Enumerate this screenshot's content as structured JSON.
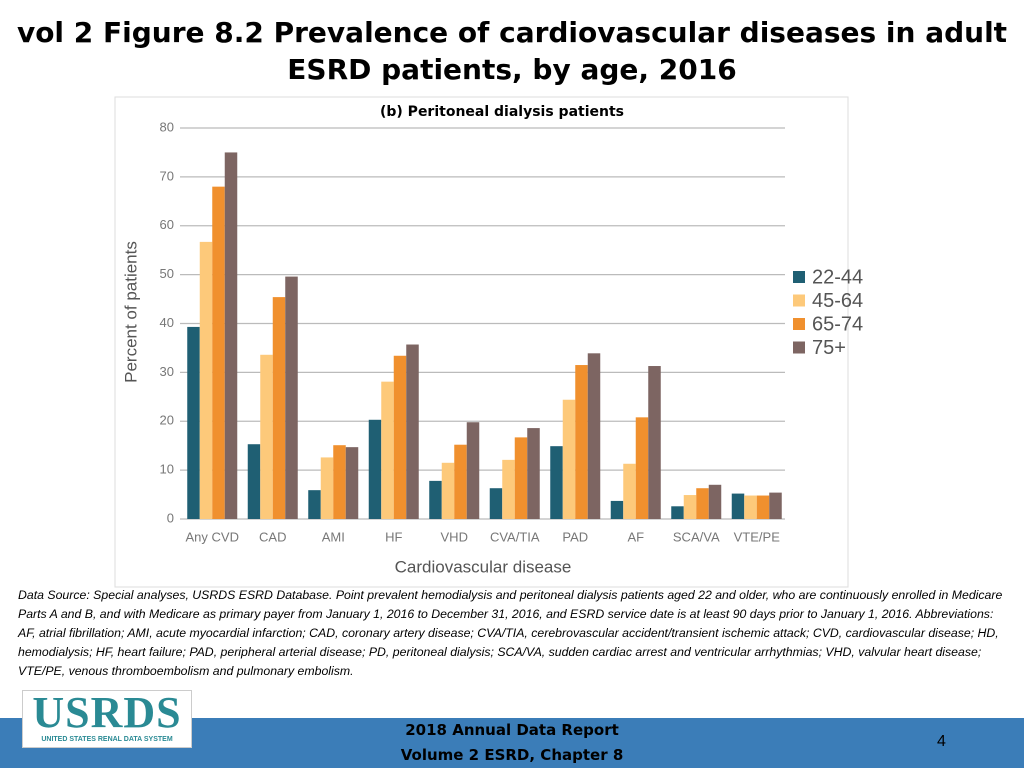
{
  "slide_title": "vol 2 Figure 8.2 Prevalence of cardiovascular diseases in adult ESRD patients, by age, 2016",
  "chart_data": {
    "type": "bar",
    "subtitle": "(b) Peritoneal dialysis patients",
    "x_label": "Cardiovascular disease",
    "y_label": "Percent of patients",
    "categories": [
      "Any CVD",
      "CAD",
      "AMI",
      "HF",
      "VHD",
      "CVA/TIA",
      "PAD",
      "AF",
      "SCA/VA",
      "VTE/PE"
    ],
    "series": [
      {
        "name": "22-44",
        "color": "#1f5f73",
        "values": [
          39.3,
          15.3,
          5.9,
          20.3,
          7.8,
          6.3,
          14.9,
          3.7,
          2.6,
          5.2
        ]
      },
      {
        "name": "45-64",
        "color": "#fdc97a",
        "values": [
          56.7,
          33.6,
          12.6,
          28.1,
          11.5,
          12.1,
          24.4,
          11.3,
          4.9,
          4.8
        ]
      },
      {
        "name": "65-74",
        "color": "#f0902e",
        "values": [
          68,
          45.4,
          15.1,
          33.4,
          15.2,
          16.7,
          31.5,
          20.8,
          6.3,
          4.8
        ]
      },
      {
        "name": "75+",
        "color": "#7d6562",
        "values": [
          75,
          49.6,
          14.7,
          35.7,
          19.8,
          18.6,
          33.9,
          31.3,
          7.0,
          5.4
        ]
      }
    ],
    "ylim": [
      0,
      80
    ],
    "yticks": [
      0,
      10,
      20,
      30,
      40,
      50,
      60,
      70,
      80
    ],
    "grid": true,
    "legend": "right"
  },
  "footnote": "Data Source: Special analyses, USRDS ESRD Database. Point prevalent hemodialysis and peritoneal dialysis patients aged 22 and older, who are continuously enrolled in Medicare Parts A and B, and with Medicare as primary payer from January 1, 2016 to December 31, 2016, and ESRD service date is at least 90 days prior to January 1, 2016. Abbreviations: AF, atrial fibrillation; AMI, acute myocardial infarction; CAD, coronary artery disease; CVA/TIA, cerebrovascular accident/transient ischemic attack; CVD, cardiovascular disease; HD, hemodialysis; HF, heart failure; PAD, peripheral arterial disease; PD, peritoneal dialysis; SCA/VA, sudden cardiac arrest and ventricular arrhythmias; VHD, valvular heart disease; VTE/PE, venous thromboembolism and pulmonary embolism.",
  "logo": {
    "name": "USRDS",
    "tagline": "UNITED STATES RENAL DATA SYSTEM"
  },
  "footer": {
    "report": "2018 Annual Data Report",
    "volume": "Volume 2 ESRD, Chapter 8",
    "page": "4"
  }
}
